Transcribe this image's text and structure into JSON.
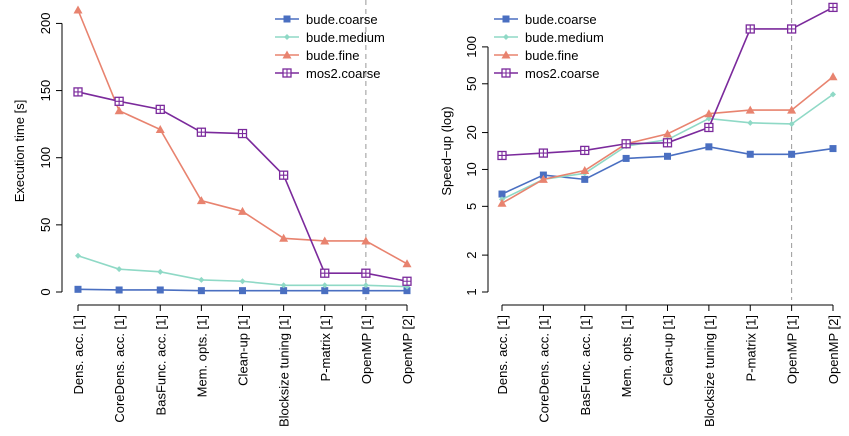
{
  "chart_data": [
    {
      "type": "line",
      "title": "",
      "xlabel": "",
      "ylabel": "Execution time [s]",
      "ylim": [
        0,
        210
      ],
      "yticks": [
        0,
        50,
        100,
        150,
        200
      ],
      "yscale": "linear",
      "categories": [
        "Dens. acc. [1]",
        "CoreDens. acc. [1]",
        "BasFunc. acc. [1]",
        "Mem. opts. [1]",
        "Clean-up [1]",
        "Blocksize tuning [1]",
        "P-matrix [1]",
        "OpenMP [1]",
        "OpenMP [2]"
      ],
      "vline_category_index": 7,
      "legend_position": "top-right",
      "grid": false,
      "series": [
        {
          "name": "bude.coarse",
          "color": "#4a6fc1",
          "marker": "square",
          "values": [
            2,
            1.5,
            1.5,
            1,
            1,
            1,
            1,
            1,
            1
          ]
        },
        {
          "name": "bude.medium",
          "color": "#8fd9c6",
          "marker": "diamond",
          "values": [
            27,
            17,
            15,
            9,
            8,
            5,
            5,
            5,
            4
          ]
        },
        {
          "name": "bude.fine",
          "color": "#e8836f",
          "marker": "triangle",
          "values": [
            210,
            135,
            121,
            68,
            60,
            40,
            38,
            38,
            21
          ]
        },
        {
          "name": "mos2.coarse",
          "color": "#7b2a9c",
          "marker": "square-plus",
          "values": [
            149,
            142,
            136,
            119,
            118,
            87,
            14,
            14,
            8
          ]
        }
      ]
    },
    {
      "type": "line",
      "title": "",
      "xlabel": "",
      "ylabel": "Speed−up (log)",
      "ylim": [
        1,
        200
      ],
      "yticks": [
        1,
        2,
        5,
        10,
        20,
        50,
        100
      ],
      "yscale": "log",
      "categories": [
        "Dens. acc. [1]",
        "CoreDens. acc. [1]",
        "BasFunc. acc. [1]",
        "Mem. opts. [1]",
        "Clean-up [1]",
        "Blocksize tuning [1]",
        "P-matrix [1]",
        "OpenMP [1]",
        "OpenMP [2]"
      ],
      "vline_category_index": 7,
      "legend_position": "top-left",
      "grid": false,
      "series": [
        {
          "name": "bude.coarse",
          "color": "#4a6fc1",
          "marker": "square",
          "values": [
            6.3,
            9.0,
            8.3,
            12.3,
            12.8,
            15.3,
            13.3,
            13.3,
            14.8
          ]
        },
        {
          "name": "bude.medium",
          "color": "#8fd9c6",
          "marker": "diamond",
          "values": [
            5.7,
            8.3,
            9.3,
            15.5,
            17.5,
            26,
            24,
            23.5,
            41
          ]
        },
        {
          "name": "bude.fine",
          "color": "#e8836f",
          "marker": "triangle",
          "values": [
            5.3,
            8.3,
            9.8,
            16.2,
            19.5,
            28.5,
            30.5,
            30.5,
            57
          ]
        },
        {
          "name": "mos2.coarse",
          "color": "#7b2a9c",
          "marker": "square-plus",
          "values": [
            13,
            13.6,
            14.3,
            16.2,
            16.5,
            22,
            140,
            140,
            210
          ]
        }
      ]
    }
  ]
}
